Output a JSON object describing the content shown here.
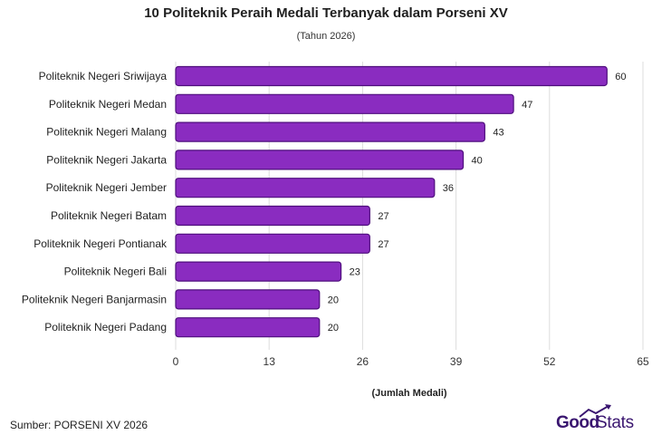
{
  "chart_data": {
    "type": "bar",
    "orientation": "horizontal",
    "title": "10 Politeknik Peraih Medali Terbanyak dalam Porseni XV",
    "subtitle": "(Tahun 2026)",
    "xlabel": "(Jumlah Medali)",
    "ylabel": "",
    "categories": [
      "Politeknik Negeri Sriwijaya",
      "Politeknik Negeri Medan",
      "Politeknik Negeri Malang",
      "Politeknik Negeri Jakarta",
      "Politeknik Negeri Jember",
      "Politeknik Negeri Batam",
      "Politeknik Negeri Pontianak",
      "Politeknik Negeri Bali",
      "Politeknik Negeri Banjarmasin",
      "Politeknik Negeri Padang"
    ],
    "values": [
      60,
      47,
      43,
      40,
      36,
      27,
      27,
      23,
      20,
      20
    ],
    "xlim": [
      0,
      65
    ],
    "xticks": [
      "0",
      "13",
      "26",
      "39",
      "52",
      "65"
    ],
    "grid": true,
    "legend": "none",
    "colors": {
      "bar_fill": "#8a2cc0",
      "bar_stroke": "#4f0f7d",
      "grid": "#dddddd"
    }
  },
  "footer": {
    "source": "Sumber: PORSENI XV 2026"
  },
  "logo": {
    "part1": "Good",
    "part2": "Stats",
    "color": "#3a1670"
  }
}
